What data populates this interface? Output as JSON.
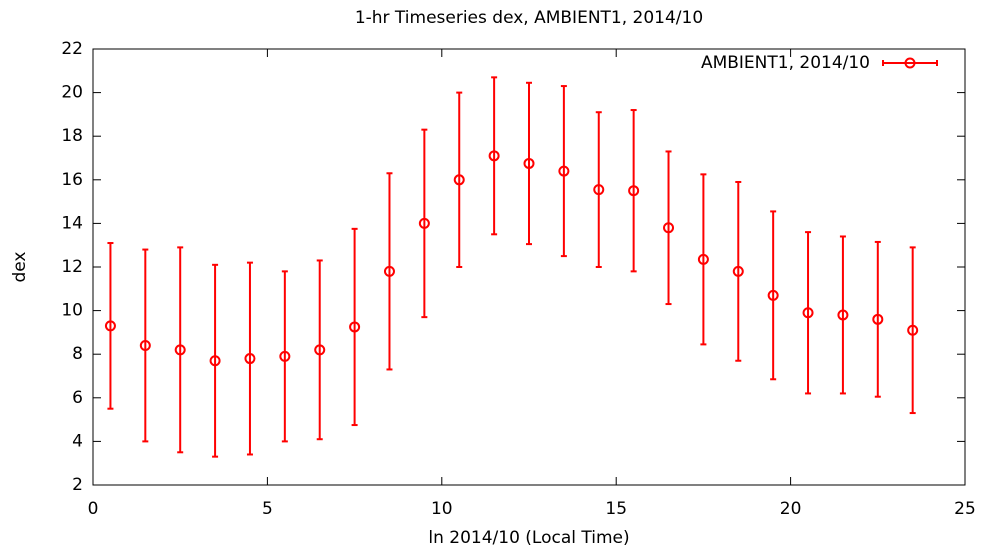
{
  "chart_data": {
    "type": "errorbar",
    "title": "1-hr Timeseries dex, AMBIENT1, 2014/10",
    "x_label": "ln 2014/10 (Local Time)",
    "y_label": "dex",
    "xlim": [
      0,
      25
    ],
    "xticks": [
      0,
      5,
      10,
      15,
      20,
      25
    ],
    "ylim": [
      2,
      22
    ],
    "yticks": [
      2,
      4,
      6,
      8,
      10,
      12,
      14,
      16,
      18,
      20,
      22
    ],
    "legend": "top-right",
    "series": [
      {
        "name": "AMBIENT1, 2014/10",
        "color": "#ff0000",
        "x": [
          0.5,
          1.5,
          2.5,
          3.5,
          4.5,
          5.5,
          6.5,
          7.5,
          8.5,
          9.5,
          10.5,
          11.5,
          12.5,
          13.5,
          14.5,
          15.5,
          16.5,
          17.5,
          18.5,
          19.5,
          20.5,
          21.5,
          22.5,
          23.5
        ],
        "values": [
          9.3,
          8.4,
          8.2,
          7.7,
          7.8,
          7.9,
          8.2,
          9.25,
          11.8,
          14.0,
          16.0,
          17.1,
          16.75,
          16.4,
          15.55,
          15.5,
          13.8,
          12.35,
          11.8,
          10.7,
          9.9,
          9.8,
          9.6,
          9.1
        ],
        "errors": [
          3.8,
          4.4,
          4.7,
          4.4,
          4.4,
          3.9,
          4.1,
          4.5,
          4.5,
          4.3,
          4.0,
          3.6,
          3.7,
          3.9,
          3.55,
          3.7,
          3.5,
          3.9,
          4.1,
          3.85,
          3.7,
          3.6,
          3.55,
          3.8
        ]
      }
    ]
  }
}
